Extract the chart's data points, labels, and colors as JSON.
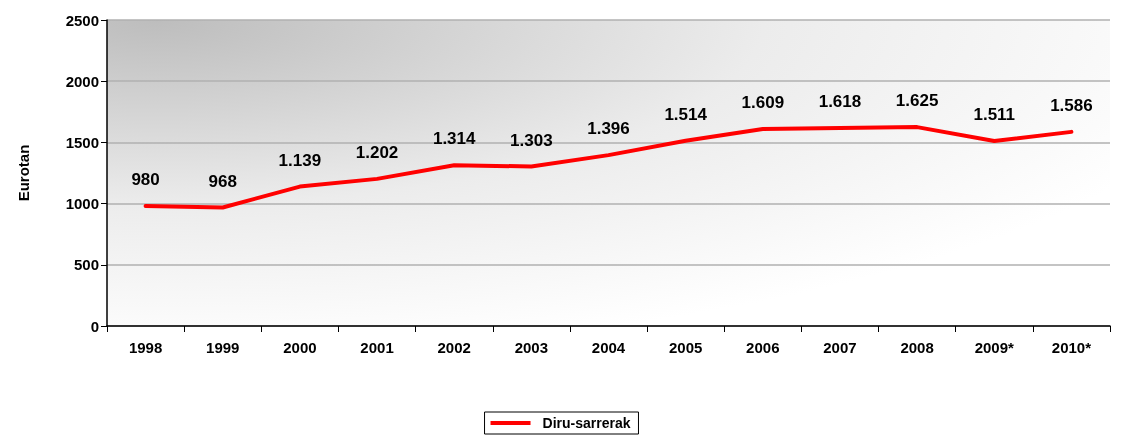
{
  "chart_data": {
    "type": "line",
    "ylabel": "Eurotan",
    "categories": [
      "1998",
      "1999",
      "2000",
      "2001",
      "2002",
      "2003",
      "2004",
      "2005",
      "2006",
      "2007",
      "2008",
      "2009*",
      "2010*"
    ],
    "series": [
      {
        "name": "Diru-sarrerak",
        "color": "#ff0000",
        "values": [
          980,
          968,
          1139,
          1202,
          1314,
          1303,
          1396,
          1514,
          1609,
          1618,
          1625,
          1511,
          1586
        ],
        "value_labels": [
          "980",
          "968",
          "1.139",
          "1.202",
          "1.314",
          "1.303",
          "1.396",
          "1.514",
          "1.609",
          "1.618",
          "1.625",
          "1.511",
          "1.586"
        ]
      }
    ],
    "ylim": [
      0,
      2500
    ],
    "yticks": [
      0,
      500,
      1000,
      1500,
      2000,
      2500
    ],
    "grid": "y",
    "legend": "bottom",
    "marker": "none",
    "line_style": "solid"
  }
}
